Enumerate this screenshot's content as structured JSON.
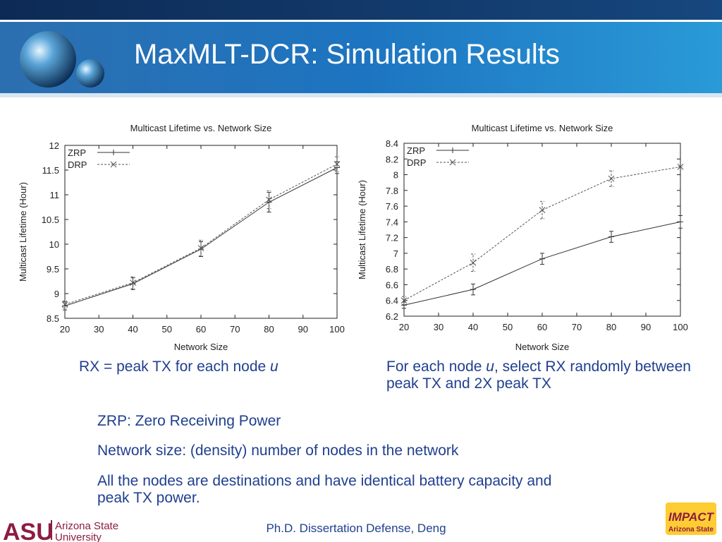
{
  "title": "MaxMLT-DCR: Simulation Results",
  "chart_data": [
    {
      "type": "line",
      "title": "Multicast Lifetime vs. Network Size",
      "xlabel": "Network Size",
      "ylabel": "Multicast Lifetime (Hour)",
      "x": [
        20,
        40,
        60,
        80,
        100
      ],
      "xlim": [
        20,
        100
      ],
      "xticks": [
        20,
        30,
        40,
        50,
        60,
        70,
        80,
        90,
        100
      ],
      "ylim": [
        8.5,
        12
      ],
      "yticks": [
        8.5,
        9,
        9.5,
        10,
        10.5,
        11,
        11.5,
        12
      ],
      "legend": "upper left",
      "series": [
        {
          "name": "ZRP",
          "color": "#333333",
          "marker": "+",
          "dashed": false,
          "values": [
            8.75,
            9.2,
            9.9,
            10.85,
            11.55
          ],
          "errors": [
            0.08,
            0.12,
            0.15,
            0.2,
            0.12
          ]
        },
        {
          "name": "DRP",
          "color": "#555555",
          "marker": "x",
          "dashed": true,
          "values": [
            8.78,
            9.22,
            9.92,
            10.9,
            11.62
          ],
          "errors": [
            0.07,
            0.12,
            0.16,
            0.18,
            0.15
          ]
        }
      ]
    },
    {
      "type": "line",
      "title": "Multicast Lifetime vs. Network Size",
      "xlabel": "Network Size",
      "ylabel": "Multicast Lifetime (Hour)",
      "x": [
        20,
        40,
        60,
        80,
        100
      ],
      "xlim": [
        20,
        100
      ],
      "xticks": [
        20,
        30,
        40,
        50,
        60,
        70,
        80,
        90,
        100
      ],
      "ylim": [
        6.2,
        8.4
      ],
      "yticks": [
        6.2,
        6.4,
        6.6,
        6.8,
        7,
        7.2,
        7.4,
        7.6,
        7.8,
        8,
        8.2,
        8.4
      ],
      "legend": "upper left",
      "series": [
        {
          "name": "ZRP",
          "color": "#333333",
          "marker": "+",
          "dashed": false,
          "values": [
            6.34,
            6.54,
            6.93,
            7.21,
            7.4
          ],
          "errors": [
            0.04,
            0.07,
            0.07,
            0.07,
            0.08
          ]
        },
        {
          "name": "DRP",
          "color": "#555555",
          "marker": "x",
          "dashed": true,
          "values": [
            6.4,
            6.88,
            7.55,
            7.95,
            8.1
          ],
          "errors": [
            0.05,
            0.11,
            0.11,
            0.1,
            0.0
          ]
        }
      ]
    }
  ],
  "captions": [
    {
      "text": "RX = peak TX for each node ",
      "italic": "u"
    },
    {
      "text": "For each node ",
      "italic": "u",
      "rest": ", select RX randomly between peak TX and 2X peak TX"
    }
  ],
  "bullets": [
    "ZRP: Zero Receiving Power",
    "Network size: (density) number of nodes in the network",
    "All the nodes are destinations and have identical battery capacity and peak TX power."
  ],
  "footer": "Ph.D. Dissertation Defense, Deng",
  "logos": {
    "asu": "ASU",
    "asu_name": [
      "Arizona State",
      "University"
    ],
    "impact": "IMPACT",
    "impact_sub": "Arizona State"
  }
}
